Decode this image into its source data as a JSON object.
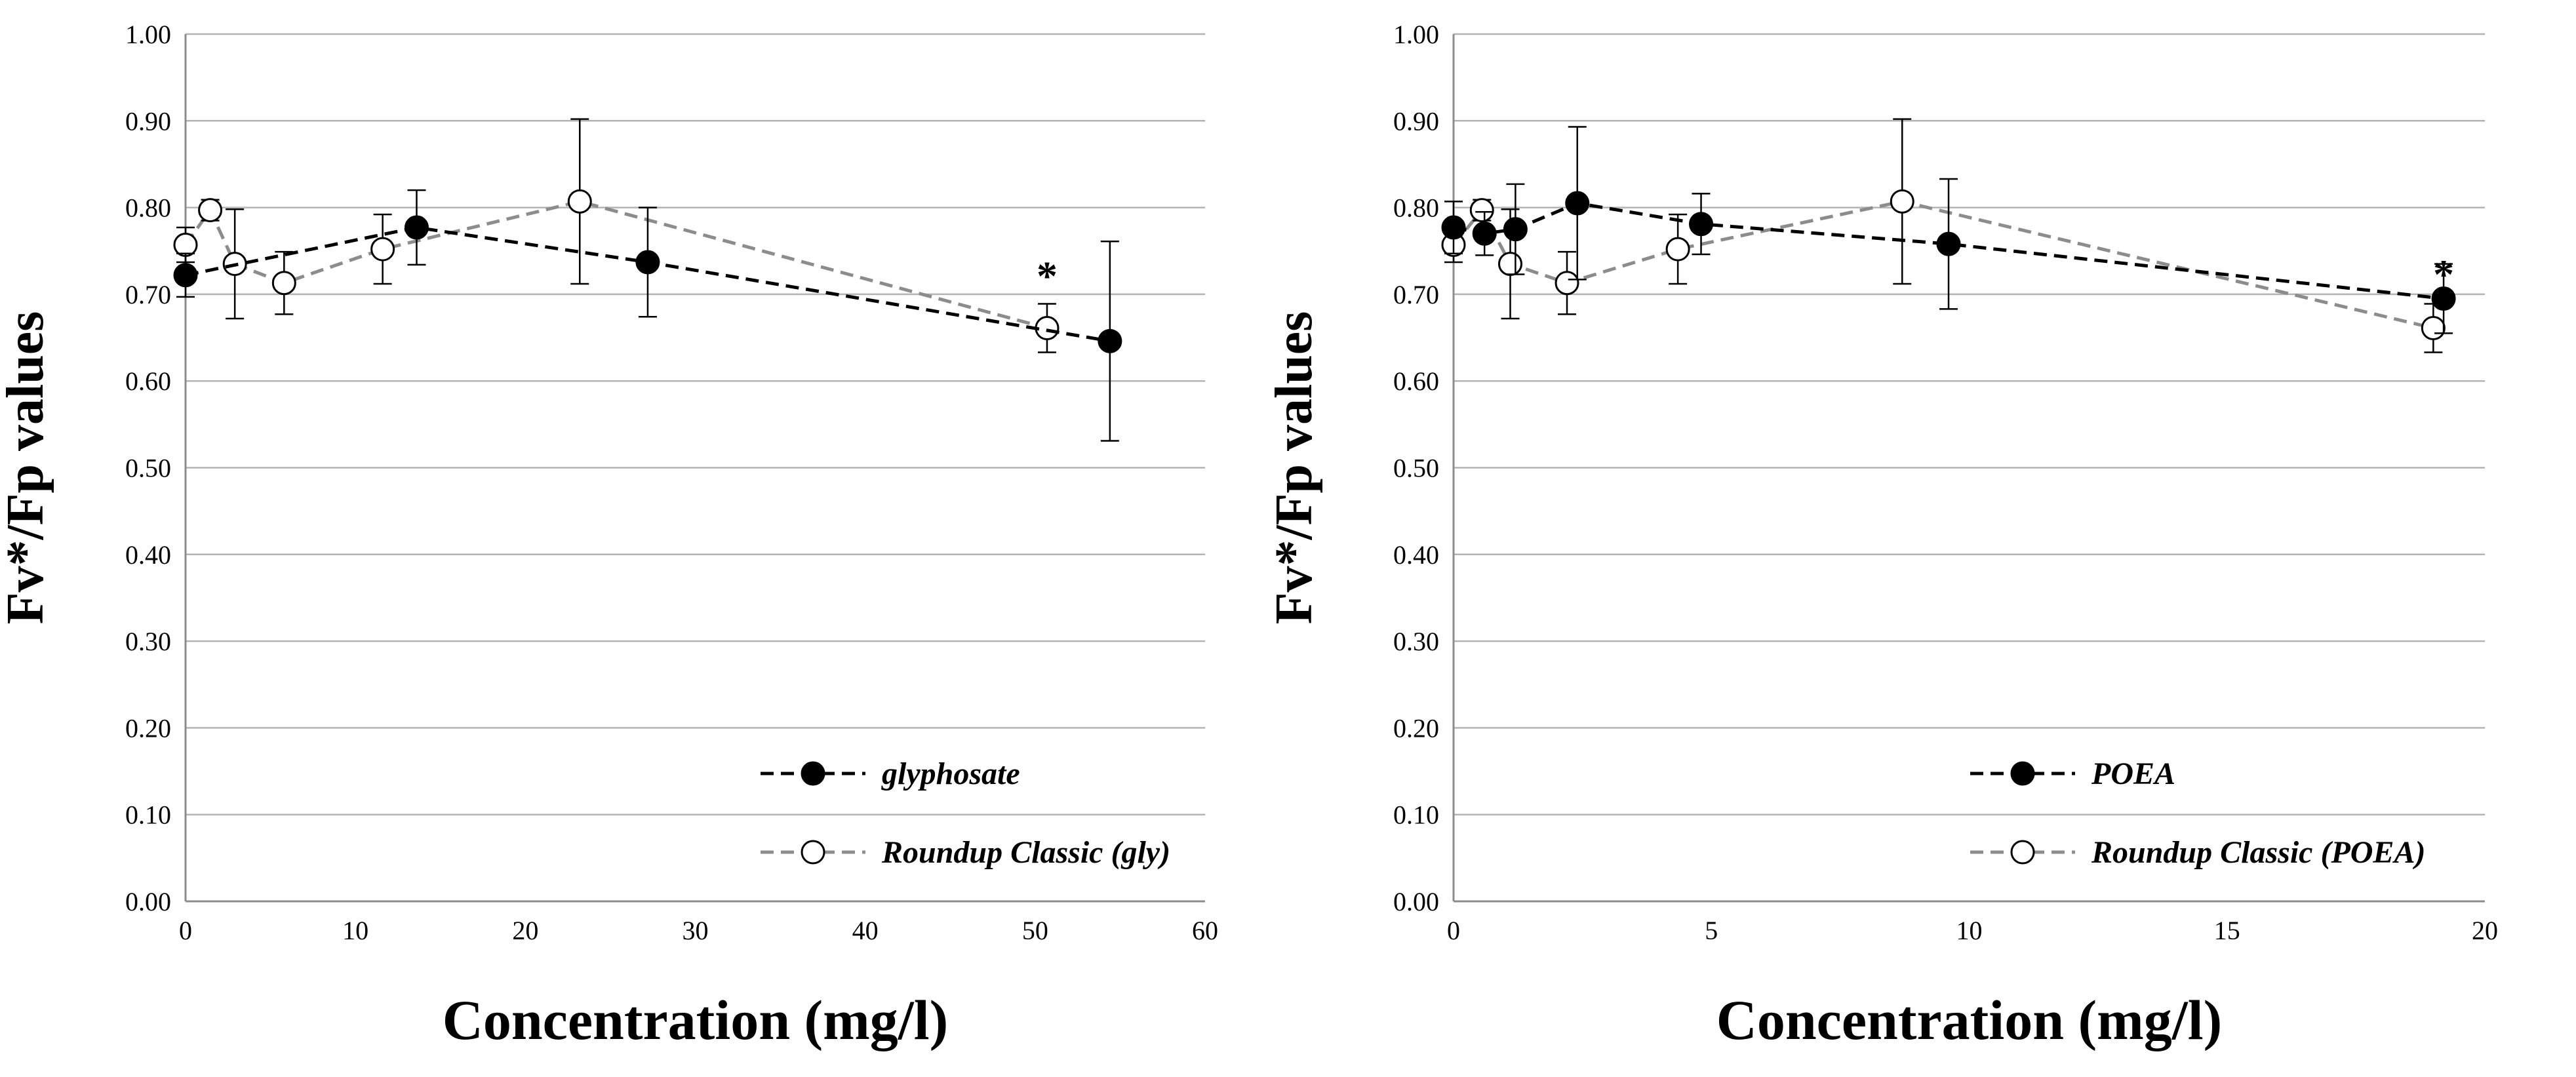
{
  "chart_data": [
    {
      "type": "line",
      "xlabel": "Concentration (mg/l)",
      "ylabel": "Fv*/Fp values",
      "xlim": [
        0,
        60
      ],
      "ylim": [
        0,
        1
      ],
      "xticks": [
        0,
        10,
        20,
        30,
        40,
        50,
        60
      ],
      "xtick_labels": [
        "0",
        "10",
        "20",
        "30",
        "40",
        "50",
        "60"
      ],
      "yticks": [
        0,
        0.1,
        0.2,
        0.3,
        0.4,
        0.5,
        0.6,
        0.7,
        0.8,
        0.9,
        1.0
      ],
      "ytick_labels": [
        "0.00",
        "0.10",
        "0.20",
        "0.30",
        "0.40",
        "0.50",
        "0.60",
        "0.70",
        "0.80",
        "0.90",
        "1.00"
      ],
      "grid": "horizontal",
      "legend_position": "bottom-right",
      "series": [
        {
          "name": "glyphosate",
          "marker": "filled-circle",
          "line_style": "dashed",
          "color": "#000000",
          "x": [
            0,
            13.6,
            27.2,
            54.4
          ],
          "y": [
            0.722,
            0.777,
            0.737,
            0.646
          ],
          "error": [
            0.025,
            0.043,
            0.063,
            0.115
          ]
        },
        {
          "name": "Roundup Classic (gly)",
          "marker": "open-circle",
          "line_style": "dashed",
          "color": "#8c8c8c",
          "x": [
            0,
            1.45,
            2.9,
            5.8,
            11.6,
            23.2,
            50.7
          ],
          "y": [
            0.757,
            0.797,
            0.735,
            0.713,
            0.752,
            0.807,
            0.661
          ],
          "error": [
            0.02,
            0.012,
            0.063,
            0.036,
            0.04,
            0.095,
            0.028
          ]
        }
      ],
      "annotations": [
        {
          "text": "*",
          "x": 50.7,
          "y": 0.735
        }
      ]
    },
    {
      "type": "line",
      "xlabel": "Concentration (mg/l)",
      "ylabel": "Fv*/Fp values",
      "xlim": [
        0,
        20
      ],
      "ylim": [
        0,
        1
      ],
      "xticks": [
        0,
        5,
        10,
        15,
        20
      ],
      "xtick_labels": [
        "0",
        "5",
        "10",
        "15",
        "20"
      ],
      "yticks": [
        0,
        0.1,
        0.2,
        0.3,
        0.4,
        0.5,
        0.6,
        0.7,
        0.8,
        0.9,
        1.0
      ],
      "ytick_labels": [
        "0.00",
        "0.10",
        "0.20",
        "0.30",
        "0.40",
        "0.50",
        "0.60",
        "0.70",
        "0.80",
        "0.90",
        "1.00"
      ],
      "grid": "horizontal",
      "legend_position": "bottom-right",
      "series": [
        {
          "name": "POEA",
          "marker": "filled-circle",
          "line_style": "dashed",
          "color": "#000000",
          "x": [
            0,
            0.6,
            1.2,
            2.4,
            4.8,
            9.6,
            19.2
          ],
          "y": [
            0.777,
            0.77,
            0.775,
            0.805,
            0.781,
            0.758,
            0.695
          ],
          "error": [
            0.03,
            0.025,
            0.052,
            0.088,
            0.035,
            0.075,
            0.04
          ]
        },
        {
          "name": "Roundup Classic (POEA)",
          "marker": "open-circle",
          "line_style": "dashed",
          "color": "#8c8c8c",
          "x": [
            0,
            0.55,
            1.1,
            2.2,
            4.35,
            8.7,
            19
          ],
          "y": [
            0.757,
            0.797,
            0.735,
            0.713,
            0.752,
            0.807,
            0.661
          ],
          "error": [
            0.02,
            0.012,
            0.063,
            0.036,
            0.04,
            0.095,
            0.028
          ]
        }
      ],
      "annotations": [
        {
          "text": "*",
          "x": 19.2,
          "y": 0.737
        }
      ]
    }
  ]
}
